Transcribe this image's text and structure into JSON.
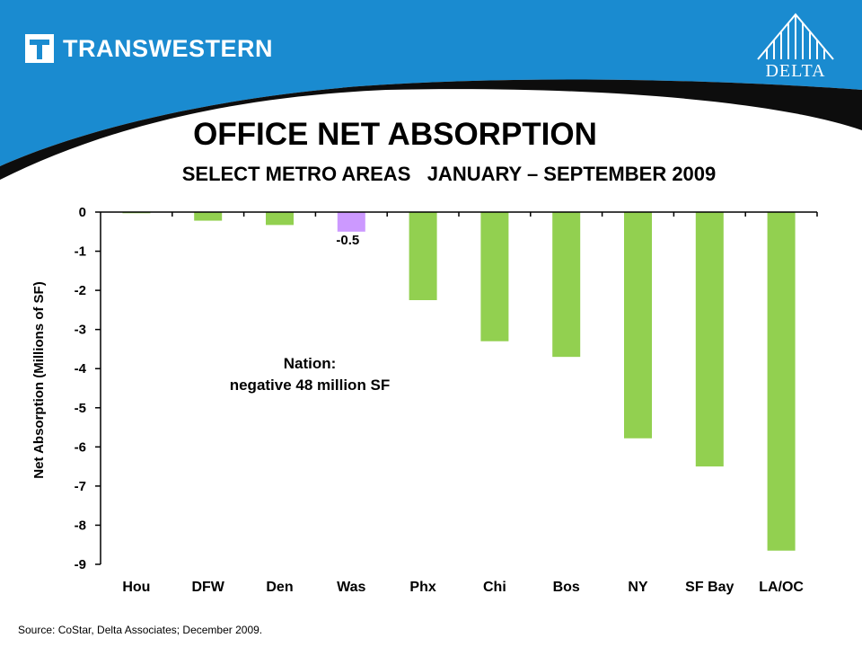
{
  "header": {
    "brand_left": "TRANSWESTERN",
    "brand_right": "DELTA",
    "colors": {
      "band": "#1a8bd0",
      "swoosh": "#0d0d0d"
    }
  },
  "chart_data": {
    "type": "bar",
    "title": "OFFICE NET ABSORPTION",
    "subtitle": "SELECT METRO AREAS   JANUARY – SEPTEMBER 2009",
    "xlabel": "",
    "ylabel": "Net Absorption (Millions of SF)",
    "ylim": [
      -9,
      0
    ],
    "yticks": [
      "0",
      "-1",
      "-2",
      "-3",
      "-4",
      "-5",
      "-6",
      "-7",
      "-8",
      "-9"
    ],
    "categories": [
      "Hou",
      "DFW",
      "Den",
      "Was",
      "Phx",
      "Chi",
      "Bos",
      "NY",
      "SF Bay",
      "LA/OC"
    ],
    "values": [
      -0.03,
      -0.22,
      -0.33,
      -0.5,
      -2.25,
      -3.3,
      -3.7,
      -5.78,
      -6.5,
      -8.65
    ],
    "bar_colors": [
      "#92d050",
      "#92d050",
      "#92d050",
      "#cc99ff",
      "#92d050",
      "#92d050",
      "#92d050",
      "#92d050",
      "#92d050",
      "#92d050"
    ],
    "data_labels": [
      {
        "category": "Was",
        "text": "-0.5"
      }
    ],
    "annotation": {
      "line1": "Nation:",
      "line2": "negative 48 million SF"
    },
    "grid": false,
    "legend": "none"
  },
  "source": "Source: CoStar, Delta Associates; December 2009."
}
